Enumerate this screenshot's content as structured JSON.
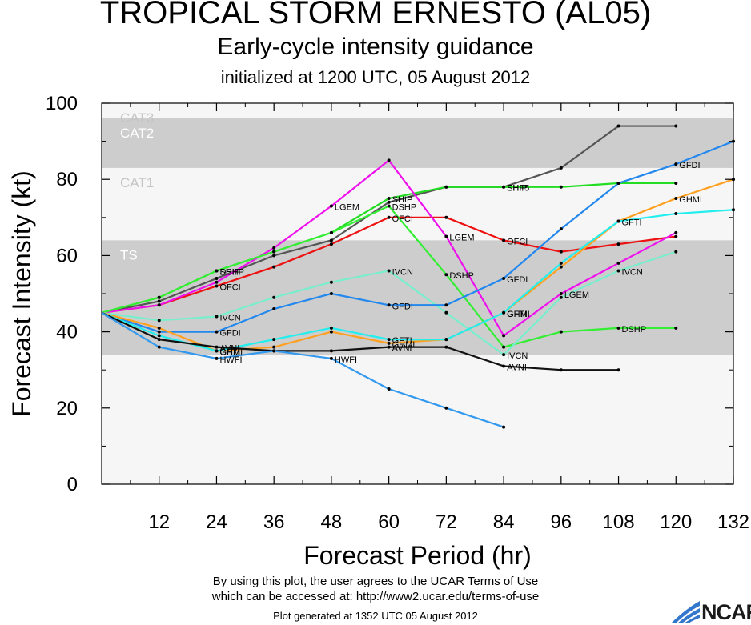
{
  "titles": {
    "main": "TROPICAL STORM ERNESTO (AL05)",
    "sub": "Early-cycle intensity guidance",
    "init": "initialized at 1200 UTC, 05 August 2012"
  },
  "footer": {
    "line1": "By using this plot, the user agrees to the UCAR Terms of Use",
    "line2": "which can be accessed at: http://www2.ucar.edu/terms-of-use",
    "line3": "Plot generated at 1352 UTC   05 August 2012",
    "logo": "NCAR"
  },
  "colors": {
    "band_dark": "#cdcdcd",
    "band_light": "#f6f6f6"
  },
  "chart_data": {
    "type": "line",
    "xlabel": "Forecast Period (hr)",
    "ylabel": "Forecast Intensity (kt)",
    "xlim": [
      0,
      132
    ],
    "ylim": [
      0,
      100
    ],
    "xticks": [
      12,
      24,
      36,
      48,
      60,
      72,
      84,
      96,
      108,
      120,
      132
    ],
    "yticks": [
      0,
      20,
      40,
      60,
      80,
      100
    ],
    "grid": false,
    "bands": [
      {
        "label": "TS",
        "from": 34,
        "to": 64,
        "shade": "dark"
      },
      {
        "label": "CAT1",
        "from": 64,
        "to": 83,
        "shade": "light"
      },
      {
        "label": "CAT2",
        "from": 83,
        "to": 96,
        "shade": "dark"
      },
      {
        "label": "CAT3",
        "from": 96,
        "to": 100,
        "shade": "light"
      }
    ],
    "series": [
      {
        "name": "SHF5",
        "color": "#555555",
        "points": [
          [
            0,
            45
          ],
          [
            12,
            48
          ],
          [
            24,
            54
          ],
          [
            36,
            60
          ],
          [
            48,
            64
          ],
          [
            60,
            74
          ],
          [
            72,
            78
          ],
          [
            84,
            78
          ],
          [
            96,
            83
          ],
          [
            108,
            94
          ],
          [
            120,
            94
          ]
        ],
        "labels": [
          [
            84,
            78
          ]
        ]
      },
      {
        "name": "SHIP",
        "color": "#22dd22",
        "points": [
          [
            0,
            45
          ],
          [
            12,
            49
          ],
          [
            24,
            56
          ],
          [
            36,
            61
          ],
          [
            48,
            66
          ],
          [
            60,
            75
          ],
          [
            72,
            78
          ],
          [
            84,
            78
          ],
          [
            96,
            78
          ],
          [
            108,
            79
          ],
          [
            120,
            79
          ]
        ],
        "labels": [
          [
            24,
            56
          ],
          [
            60,
            75
          ],
          [
            84,
            78
          ]
        ]
      },
      {
        "name": "OFCI",
        "color": "#ee1111",
        "points": [
          [
            0,
            45
          ],
          [
            12,
            47
          ],
          [
            24,
            52
          ],
          [
            36,
            57
          ],
          [
            48,
            63
          ],
          [
            60,
            70
          ],
          [
            72,
            70
          ],
          [
            84,
            64
          ],
          [
            96,
            61
          ],
          [
            108,
            63
          ],
          [
            120,
            65
          ]
        ],
        "labels": [
          [
            24,
            52
          ],
          [
            60,
            70
          ],
          [
            84,
            64
          ]
        ]
      },
      {
        "name": "LGEM",
        "color": "#ee11ee",
        "points": [
          [
            0,
            45
          ],
          [
            12,
            47
          ],
          [
            24,
            53
          ],
          [
            36,
            62
          ],
          [
            48,
            73
          ],
          [
            60,
            85
          ],
          [
            72,
            65
          ],
          [
            84,
            39
          ],
          [
            96,
            50
          ],
          [
            108,
            58
          ],
          [
            120,
            66
          ]
        ],
        "labels": [
          [
            48,
            73
          ],
          [
            72,
            65
          ],
          [
            96,
            50
          ]
        ]
      },
      {
        "name": "DSHP",
        "color": "#33ee33",
        "points": [
          [
            0,
            45
          ],
          [
            12,
            49
          ],
          [
            24,
            56
          ],
          [
            36,
            61
          ],
          [
            48,
            66
          ],
          [
            60,
            73
          ],
          [
            72,
            55
          ],
          [
            84,
            36
          ],
          [
            96,
            40
          ],
          [
            108,
            41
          ],
          [
            120,
            41
          ]
        ],
        "labels": [
          [
            24,
            56
          ],
          [
            60,
            73
          ],
          [
            72,
            55
          ],
          [
            108,
            41
          ]
        ]
      },
      {
        "name": "IVCN",
        "color": "#77eecc",
        "points": [
          [
            0,
            45
          ],
          [
            12,
            43
          ],
          [
            24,
            44
          ],
          [
            36,
            49
          ],
          [
            48,
            53
          ],
          [
            60,
            56
          ],
          [
            72,
            45
          ],
          [
            84,
            34
          ],
          [
            96,
            49
          ],
          [
            108,
            56
          ],
          [
            120,
            61
          ]
        ],
        "labels": [
          [
            24,
            44
          ],
          [
            60,
            56
          ],
          [
            84,
            34
          ],
          [
            108,
            56
          ]
        ]
      },
      {
        "name": "GFDI",
        "color": "#2288ee",
        "points": [
          [
            0,
            45
          ],
          [
            12,
            40
          ],
          [
            24,
            40
          ],
          [
            36,
            46
          ],
          [
            48,
            50
          ],
          [
            60,
            47
          ],
          [
            72,
            47
          ],
          [
            84,
            54
          ],
          [
            96,
            67
          ],
          [
            108,
            79
          ],
          [
            120,
            84
          ],
          [
            132,
            90
          ]
        ],
        "labels": [
          [
            24,
            40
          ],
          [
            60,
            47
          ],
          [
            84,
            54
          ],
          [
            120,
            84
          ]
        ]
      },
      {
        "name": "GHMI",
        "color": "#ffa020",
        "points": [
          [
            0,
            45
          ],
          [
            12,
            41
          ],
          [
            24,
            35
          ],
          [
            36,
            36
          ],
          [
            48,
            40
          ],
          [
            60,
            37
          ],
          [
            72,
            38
          ],
          [
            84,
            45
          ],
          [
            96,
            57
          ],
          [
            108,
            69
          ],
          [
            120,
            75
          ],
          [
            132,
            80
          ]
        ],
        "labels": [
          [
            24,
            35
          ],
          [
            60,
            37
          ],
          [
            84,
            45
          ],
          [
            120,
            75
          ]
        ]
      },
      {
        "name": "GFTI",
        "color": "#22eeee",
        "points": [
          [
            0,
            45
          ],
          [
            12,
            39
          ],
          [
            24,
            35
          ],
          [
            36,
            38
          ],
          [
            48,
            41
          ],
          [
            60,
            38
          ],
          [
            72,
            38
          ],
          [
            84,
            45
          ],
          [
            96,
            58
          ],
          [
            108,
            69
          ],
          [
            120,
            71
          ],
          [
            132,
            72
          ]
        ],
        "labels": [
          [
            24,
            35
          ],
          [
            60,
            38
          ],
          [
            84,
            45
          ],
          [
            108,
            69
          ]
        ]
      },
      {
        "name": "AVNI",
        "color": "#111111",
        "points": [
          [
            0,
            45
          ],
          [
            12,
            38
          ],
          [
            24,
            36
          ],
          [
            36,
            35
          ],
          [
            48,
            35
          ],
          [
            60,
            36
          ],
          [
            72,
            36
          ],
          [
            84,
            31
          ],
          [
            96,
            30
          ],
          [
            108,
            30
          ]
        ],
        "labels": [
          [
            24,
            36
          ],
          [
            60,
            36
          ],
          [
            84,
            31
          ]
        ]
      },
      {
        "name": "HWFI",
        "color": "#3399ee",
        "points": [
          [
            0,
            45
          ],
          [
            12,
            36
          ],
          [
            24,
            33
          ],
          [
            36,
            35
          ],
          [
            48,
            33
          ],
          [
            60,
            25
          ],
          [
            72,
            20
          ],
          [
            84,
            15
          ]
        ],
        "labels": [
          [
            24,
            33
          ],
          [
            48,
            33
          ]
        ]
      }
    ]
  }
}
